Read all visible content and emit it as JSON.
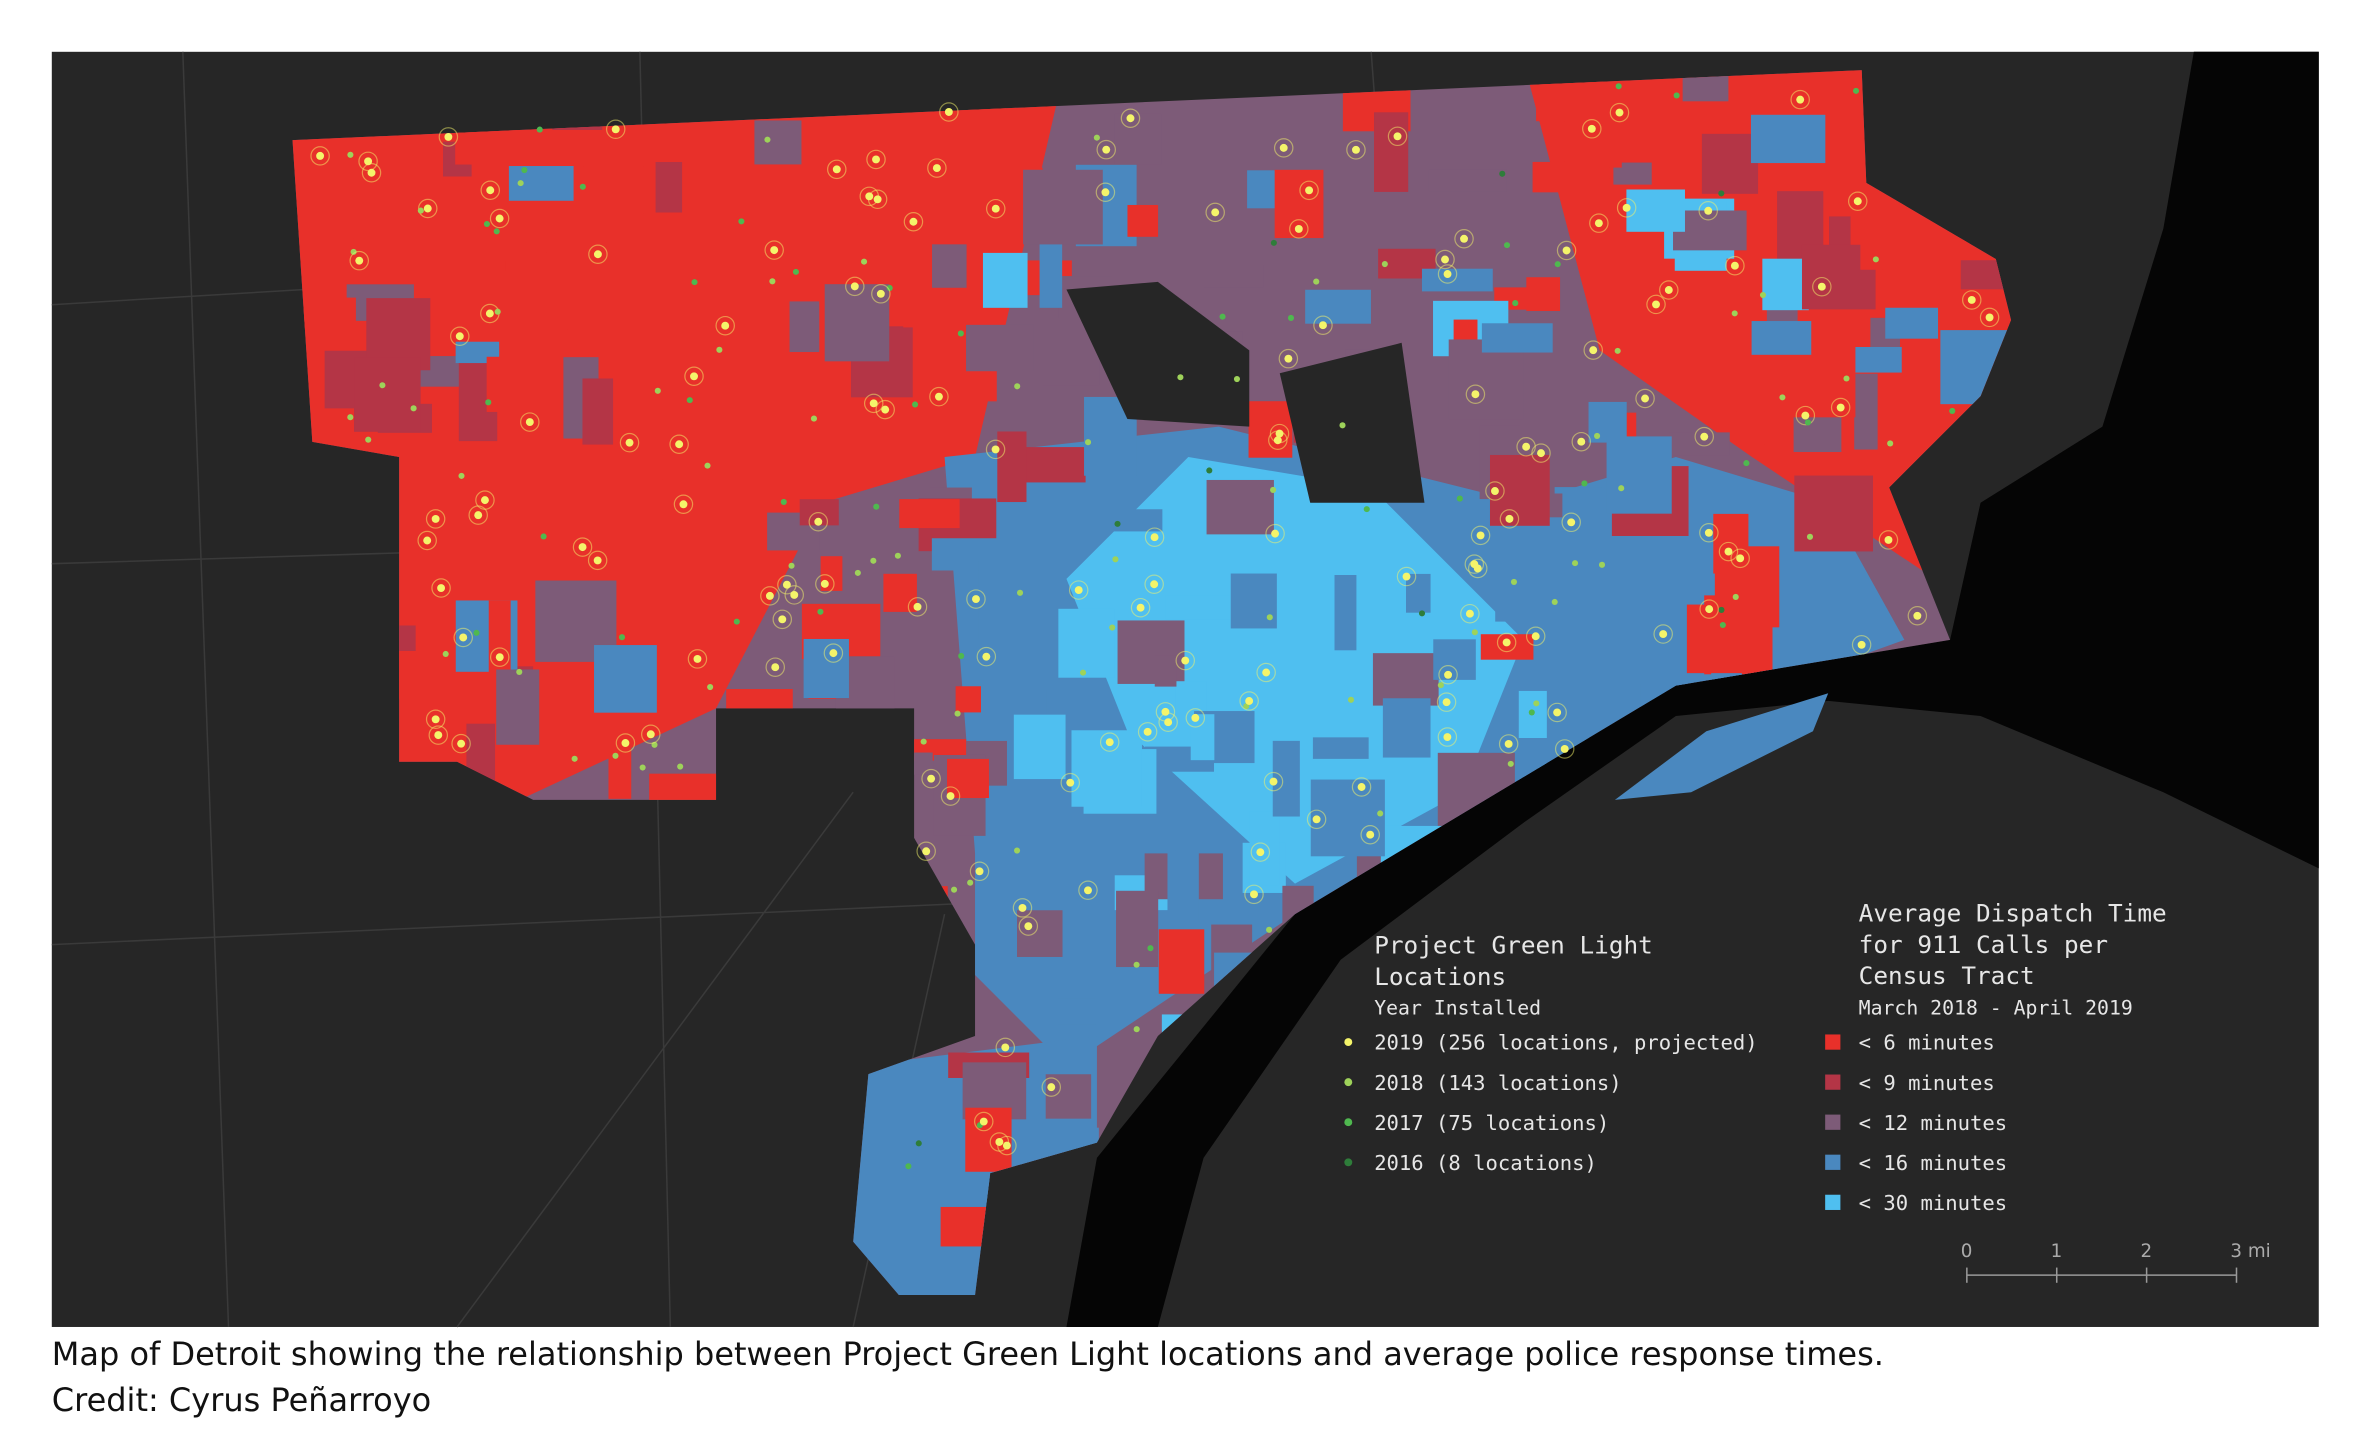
{
  "green_light_legend": {
    "title_lines": [
      "Project Green Light",
      "Locations"
    ],
    "subtitle": "Year Installed",
    "items": [
      {
        "label": "2019 (256 locations, projected)",
        "color": "#f4f46a"
      },
      {
        "label": "2018 (143 locations)",
        "color": "#9ed25a"
      },
      {
        "label": "2017 (75 locations)",
        "color": "#4fb84f"
      },
      {
        "label": "2016 (8 locations)",
        "color": "#2e7d3a"
      }
    ]
  },
  "dispatch_legend": {
    "title_lines": [
      "Average Dispatch Time",
      "for 911 Calls per",
      "Census Tract"
    ],
    "subtitle": "March 2018 - April 2019",
    "items": [
      {
        "label": "< 6 minutes",
        "color": "#e8302a"
      },
      {
        "label": "< 9 minutes",
        "color": "#b43546"
      },
      {
        "label": "< 12 minutes",
        "color": "#7d5b78"
      },
      {
        "label": "< 16 minutes",
        "color": "#4a88bf"
      },
      {
        "label": "< 30 minutes",
        "color": "#4fbff0"
      }
    ]
  },
  "scale_bar": {
    "labels": [
      "0",
      "1",
      "2",
      "3 mi"
    ]
  },
  "caption": {
    "lines": [
      "Map of Detroit showing the relationship between Project Green Light locations and average police response times.",
      "Credit: Cyrus Peñarroyo"
    ]
  }
}
